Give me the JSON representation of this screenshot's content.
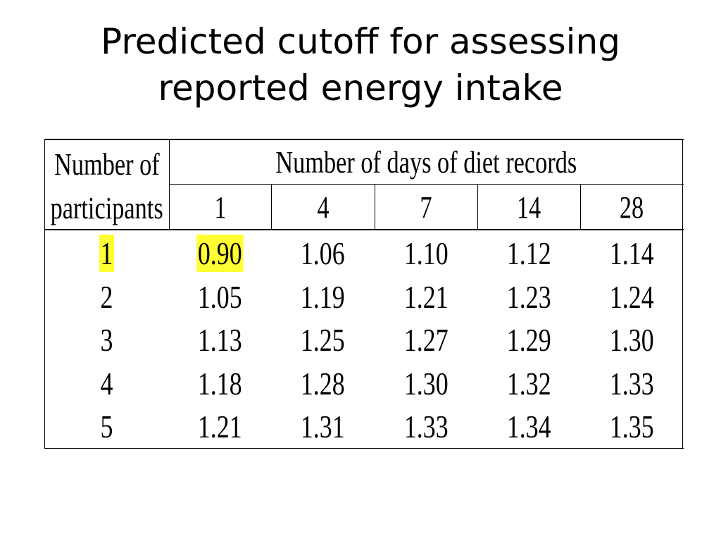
{
  "title": {
    "line1": "Predicted cutoff for assessing",
    "line2": "reported energy intake"
  },
  "table": {
    "row_header_line1": "Number of",
    "row_header_line2": "participants",
    "column_group_header": "Number of days of diet records",
    "days": [
      "1",
      "4",
      "7",
      "14",
      "28"
    ],
    "rows": [
      {
        "participants": "1",
        "values": [
          "0.90",
          "1.06",
          "1.10",
          "1.12",
          "1.14"
        ],
        "highlighted": true
      },
      {
        "participants": "2",
        "values": [
          "1.05",
          "1.19",
          "1.21",
          "1.23",
          "1.24"
        ]
      },
      {
        "participants": "3",
        "values": [
          "1.13",
          "1.25",
          "1.27",
          "1.29",
          "1.30"
        ]
      },
      {
        "participants": "4",
        "values": [
          "1.18",
          "1.28",
          "1.30",
          "1.32",
          "1.33"
        ]
      },
      {
        "participants": "5",
        "values": [
          "1.21",
          "1.31",
          "1.33",
          "1.34",
          "1.35"
        ]
      }
    ],
    "highlight_color": "#ffff33"
  }
}
